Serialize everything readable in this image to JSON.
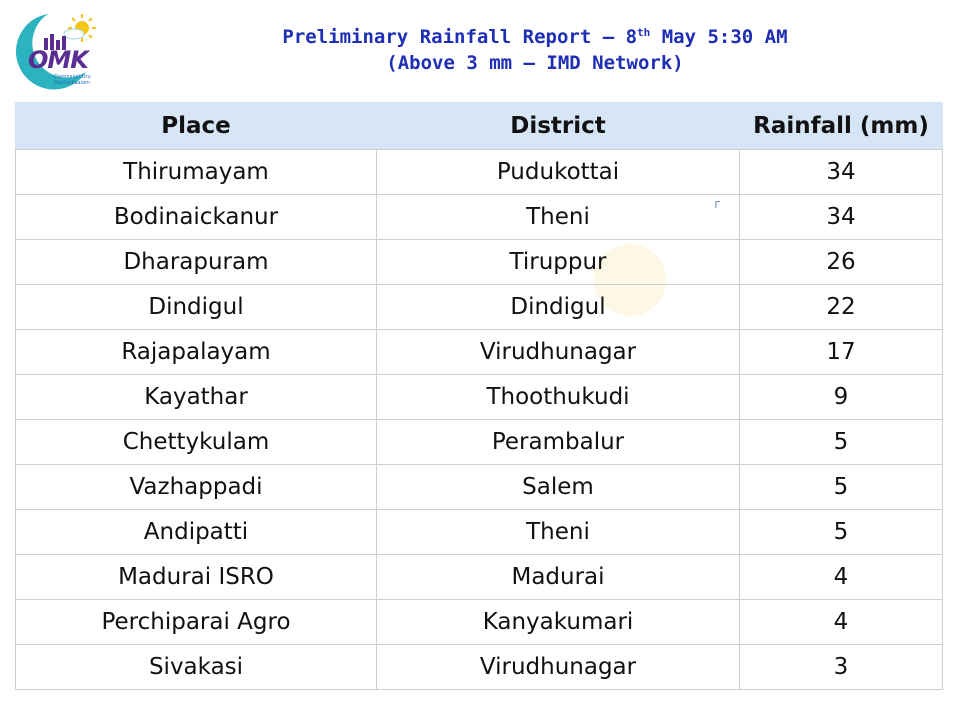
{
  "logo": {
    "text": "OMK",
    "subtext": "Chennaiyil Oru Mazhaikaalam"
  },
  "header": {
    "title_pre": "Preliminary Rainfall Report – 8",
    "title_sup": "th",
    "title_post": " May 5:30 AM",
    "subtitle": "(Above 3 mm – IMD Network)"
  },
  "table": {
    "headers": [
      "Place",
      "District",
      "Rainfall (mm)"
    ],
    "rows": [
      [
        "Thirumayam",
        "Pudukottai",
        "34"
      ],
      [
        "Bodinaickanur",
        "Theni",
        "34"
      ],
      [
        "Dharapuram",
        "Tiruppur",
        "26"
      ],
      [
        "Dindigul",
        "Dindigul",
        "22"
      ],
      [
        "Rajapalayam",
        "Virudhunagar",
        "17"
      ],
      [
        "Kayathar",
        "Thoothukudi",
        "9"
      ],
      [
        "Chettykulam",
        "Perambalur",
        "5"
      ],
      [
        "Vazhappadi",
        "Salem",
        "5"
      ],
      [
        "Andipatti",
        "Theni",
        "5"
      ],
      [
        "Madurai ISRO",
        "Madurai",
        "4"
      ],
      [
        "Perchiparai Agro",
        "Kanyakumari",
        "4"
      ],
      [
        "Sivakasi",
        "Virudhunagar",
        "3"
      ]
    ]
  },
  "colors": {
    "title": "#1f2fb5",
    "header_bg": "#d6e6f6",
    "logo_teal": "#2bb3c0",
    "logo_sun": "#f5c518",
    "logo_purple": "#5a2d91"
  }
}
